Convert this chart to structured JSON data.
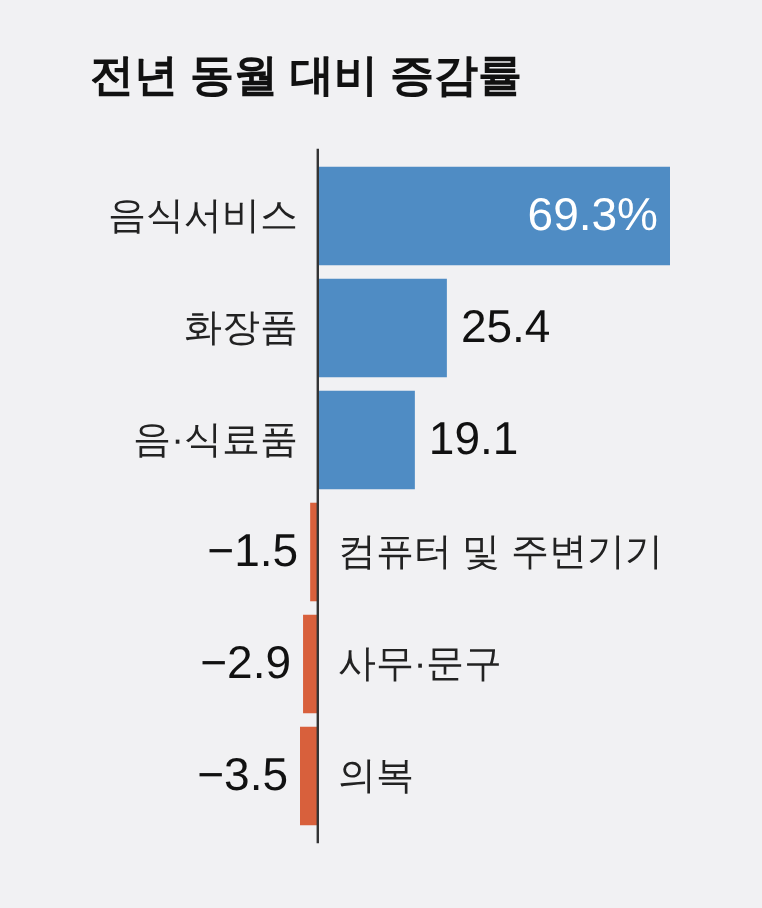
{
  "chart_data": {
    "type": "bar",
    "orientation": "horizontal",
    "title": "전년 동월 대비 증감률",
    "categories": [
      "음식서비스",
      "화장품",
      "음·식료품",
      "컴퓨터 및 주변기기",
      "사무·문구",
      "의복"
    ],
    "values": [
      69.3,
      25.4,
      19.1,
      -1.5,
      -2.9,
      -3.5
    ],
    "colors": [
      "#4f8cc4",
      "#4f8cc4",
      "#4f8cc4",
      "#d8603c",
      "#d8603c",
      "#d8603c"
    ],
    "value_labels": [
      "69.3%",
      "25.4",
      "19.1",
      "−1.5",
      "−2.9",
      "−3.5"
    ]
  }
}
